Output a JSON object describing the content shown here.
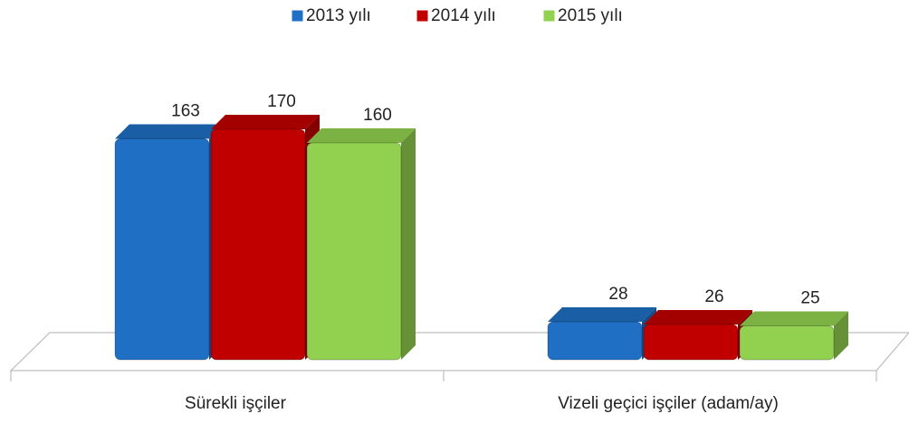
{
  "chart_data": {
    "type": "bar3d",
    "categories": [
      "Sürekli işçiler",
      "Vizeli geçici işçiler (adam/ay)"
    ],
    "series": [
      {
        "name": "2013 yılı",
        "color": "#1f6fc4",
        "values": [
          163,
          28
        ]
      },
      {
        "name": "2014 yılı",
        "color": "#c00000",
        "values": [
          170,
          26
        ]
      },
      {
        "name": "2015 yılı",
        "color": "#92d050",
        "values": [
          160,
          25
        ]
      }
    ],
    "legend": "top"
  }
}
